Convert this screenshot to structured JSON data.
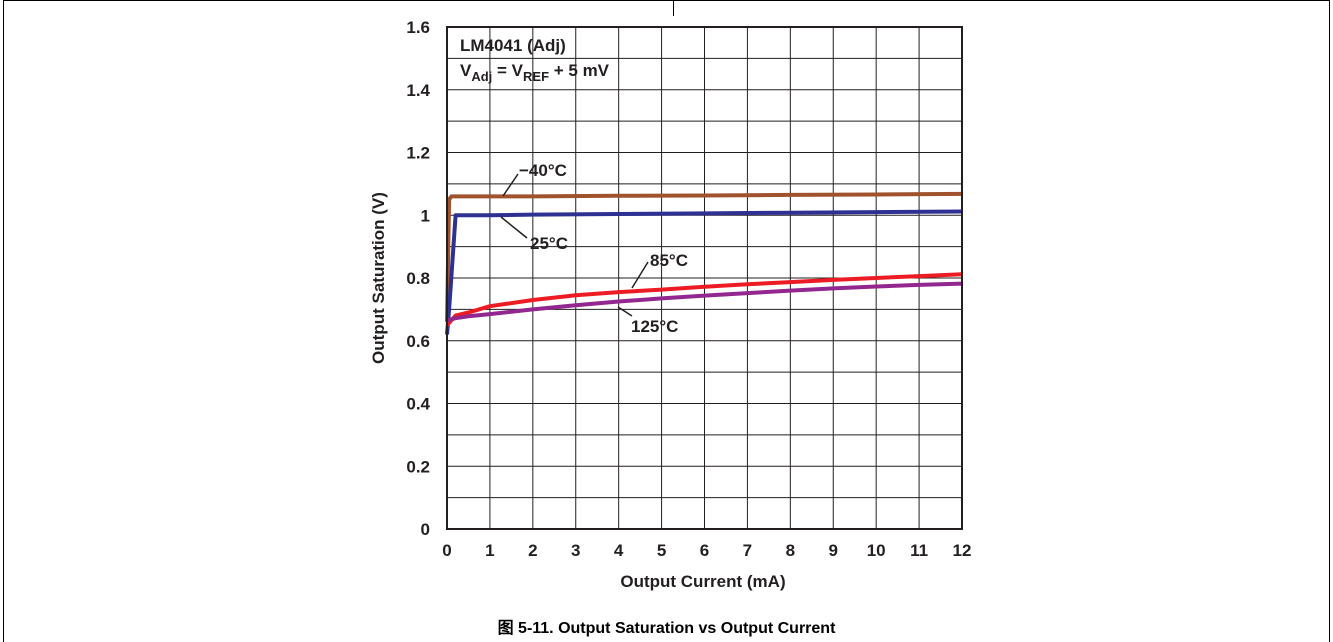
{
  "figure": {
    "caption": "图 5-11. Output Saturation vs Output Current"
  },
  "chart_data": {
    "type": "line",
    "title": "",
    "xlabel": "Output Current (mA)",
    "ylabel": "Output Saturation (V)",
    "xlim": [
      0,
      12
    ],
    "ylim": [
      0,
      1.6
    ],
    "x_ticks": [
      "0",
      "1",
      "2",
      "3",
      "4",
      "5",
      "6",
      "7",
      "8",
      "9",
      "10",
      "11",
      "12"
    ],
    "y_ticks": [
      "0",
      "0.2",
      "0.4",
      "0.6",
      "0.8",
      "1",
      "1.2",
      "1.4",
      "1.6"
    ],
    "grid": true,
    "annotation": {
      "line1": "LM4041 (Adj)",
      "line2_main": "V",
      "line2_sub1": "Adj",
      "line2_mid": " = V",
      "line2_sub2": "REF",
      "line2_end": " + 5 mV"
    },
    "series": [
      {
        "name": "−40°C",
        "color": "#a0522d",
        "x": [
          0,
          0.05,
          0.1,
          0.5,
          1,
          2,
          4,
          6,
          8,
          10,
          12
        ],
        "y": [
          0.66,
          1.05,
          1.06,
          1.06,
          1.06,
          1.06,
          1.062,
          1.063,
          1.065,
          1.066,
          1.068
        ]
      },
      {
        "name": "25°C",
        "color": "#2e3192",
        "x": [
          0,
          0.05,
          0.2,
          0.5,
          1,
          2,
          4,
          6,
          8,
          10,
          12
        ],
        "y": [
          0.62,
          0.7,
          1.0,
          1.0,
          1.0,
          1.002,
          1.004,
          1.006,
          1.008,
          1.01,
          1.012
        ]
      },
      {
        "name": "85°C",
        "color": "#ed1c24",
        "x": [
          0,
          0.2,
          0.5,
          1,
          2,
          3,
          4,
          5,
          6,
          7,
          8,
          9,
          10,
          11,
          12
        ],
        "y": [
          0.65,
          0.68,
          0.69,
          0.71,
          0.73,
          0.745,
          0.755,
          0.763,
          0.772,
          0.78,
          0.787,
          0.794,
          0.8,
          0.806,
          0.812
        ]
      },
      {
        "name": "125°C",
        "color": "#92278f",
        "x": [
          0,
          0.2,
          0.5,
          1,
          2,
          3,
          4,
          5,
          6,
          7,
          8,
          9,
          10,
          11,
          12
        ],
        "y": [
          0.665,
          0.672,
          0.678,
          0.685,
          0.7,
          0.713,
          0.725,
          0.735,
          0.744,
          0.752,
          0.76,
          0.767,
          0.773,
          0.778,
          0.782
        ]
      }
    ]
  }
}
